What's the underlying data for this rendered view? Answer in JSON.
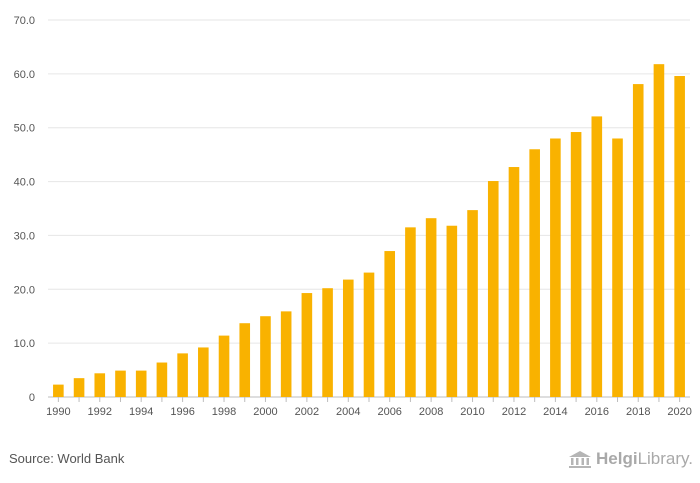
{
  "chart_data": {
    "type": "bar",
    "categories": [
      "1990",
      "1991",
      "1992",
      "1993",
      "1994",
      "1995",
      "1996",
      "1997",
      "1998",
      "1999",
      "2000",
      "2001",
      "2002",
      "2003",
      "2004",
      "2005",
      "2006",
      "2007",
      "2008",
      "2009",
      "2010",
      "2011",
      "2012",
      "2013",
      "2014",
      "2015",
      "2016",
      "2017",
      "2018",
      "2019",
      "2020"
    ],
    "x_tick_labels": [
      "1990",
      "1992",
      "1994",
      "1996",
      "1998",
      "2000",
      "2002",
      "2004",
      "2006",
      "2008",
      "2010",
      "2012",
      "2014",
      "2016",
      "2018",
      "2020"
    ],
    "values": [
      2.3,
      3.5,
      4.4,
      4.9,
      4.9,
      6.4,
      8.1,
      9.2,
      11.4,
      13.7,
      15.0,
      15.9,
      19.3,
      20.2,
      21.8,
      23.1,
      27.1,
      31.5,
      33.2,
      31.8,
      34.7,
      40.1,
      42.7,
      46.0,
      48.0,
      49.2,
      52.1,
      48.0,
      58.1,
      61.8,
      59.6
    ],
    "y_tick_labels": [
      "0",
      "10.0",
      "20.0",
      "30.0",
      "40.0",
      "50.0",
      "60.0",
      "70.0"
    ],
    "ylim": [
      0,
      70
    ],
    "grid": true,
    "bar_color": "#f9b200",
    "title": "",
    "xlabel": "",
    "ylabel": ""
  },
  "footer": {
    "source": "Source: World Bank",
    "logo_bold": "Helgi",
    "logo_rest": "Library."
  }
}
